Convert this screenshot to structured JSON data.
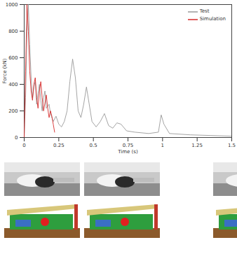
{
  "chart_data": {
    "type": "line",
    "x_label": "Time (s)",
    "y_label": "Force (kN)",
    "xlim": [
      0,
      1.5
    ],
    "xticks": [
      0,
      0.25,
      0.5,
      0.75,
      1,
      1.25,
      1.5
    ],
    "ylim": [
      0,
      1000
    ],
    "yticks": [
      0,
      200,
      400,
      600,
      800,
      1000
    ],
    "grid": false,
    "legend": "top-right",
    "series": [
      {
        "name": "Test",
        "color": "#9a9a9a",
        "x": [
          0,
          0.01,
          0.02,
          0.03,
          0.04,
          0.05,
          0.06,
          0.07,
          0.08,
          0.09,
          0.1,
          0.11,
          0.12,
          0.13,
          0.14,
          0.15,
          0.16,
          0.18,
          0.19,
          0.21,
          0.23,
          0.25,
          0.27,
          0.29,
          0.31,
          0.33,
          0.35,
          0.37,
          0.39,
          0.41,
          0.43,
          0.45,
          0.47,
          0.49,
          0.52,
          0.55,
          0.58,
          0.61,
          0.64,
          0.67,
          0.7,
          0.74,
          0.8,
          0.9,
          0.97,
          0.99,
          1.01,
          1.05,
          1.2,
          1.35,
          1.5
        ],
        "values": [
          0,
          300,
          800,
          1000,
          700,
          450,
          300,
          380,
          420,
          250,
          330,
          400,
          280,
          200,
          300,
          350,
          220,
          250,
          180,
          120,
          160,
          100,
          80,
          120,
          200,
          420,
          590,
          450,
          200,
          150,
          250,
          380,
          250,
          120,
          80,
          120,
          180,
          90,
          70,
          110,
          100,
          50,
          40,
          30,
          40,
          170,
          100,
          30,
          20,
          15,
          10
        ]
      },
      {
        "name": "Simulation",
        "color": "#d62a2a",
        "x": [
          0,
          0.01,
          0.02,
          0.03,
          0.04,
          0.05,
          0.06,
          0.07,
          0.08,
          0.09,
          0.1,
          0.11,
          0.12,
          0.13,
          0.14,
          0.15,
          0.16,
          0.17,
          0.18,
          0.19,
          0.2,
          0.21,
          0.22
        ],
        "values": [
          0,
          500,
          1000,
          800,
          500,
          350,
          280,
          400,
          450,
          300,
          220,
          350,
          420,
          300,
          200,
          260,
          320,
          220,
          150,
          200,
          160,
          100,
          40
        ]
      }
    ]
  }
}
